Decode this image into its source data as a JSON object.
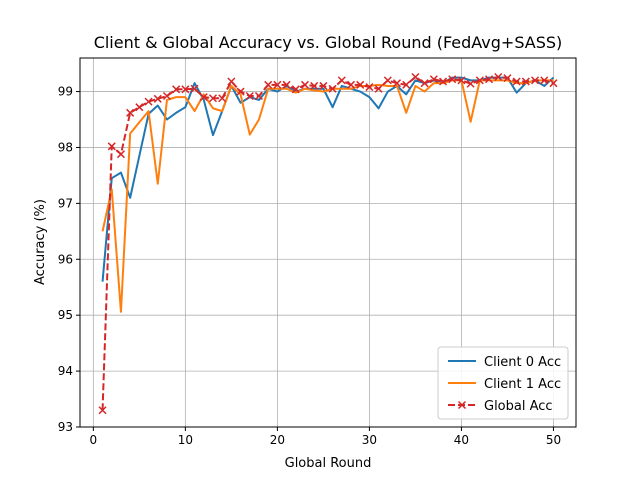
{
  "chart_data": {
    "type": "line",
    "title": "Client & Global Accuracy vs. Global Round (FedAvg+SASS)",
    "xlabel": "Global Round",
    "ylabel": "Accuracy (%)",
    "xlim": [
      -1.45,
      52.45
    ],
    "ylim": [
      93,
      99.6
    ],
    "xticks": [
      0,
      10,
      20,
      30,
      40,
      50
    ],
    "yticks": [
      93,
      94,
      95,
      96,
      97,
      98,
      99
    ],
    "grid": true,
    "legend_position": "lower-right",
    "x": [
      1,
      2,
      3,
      4,
      5,
      6,
      7,
      8,
      9,
      10,
      11,
      12,
      13,
      14,
      15,
      16,
      17,
      18,
      19,
      20,
      21,
      22,
      23,
      24,
      25,
      26,
      27,
      28,
      29,
      30,
      31,
      32,
      33,
      34,
      35,
      36,
      37,
      38,
      39,
      40,
      41,
      42,
      43,
      44,
      45,
      46,
      47,
      48,
      49,
      50
    ],
    "series": [
      {
        "name": "Client 0 Acc",
        "color": "#1f77b4",
        "style": "solid",
        "marker": "none",
        "values": [
          95.6,
          97.45,
          97.55,
          97.1,
          97.85,
          98.6,
          98.75,
          98.5,
          98.62,
          98.72,
          99.15,
          98.85,
          98.22,
          98.65,
          99.1,
          98.8,
          98.9,
          98.85,
          99.05,
          99.0,
          99.1,
          99.0,
          99.05,
          99.05,
          99.05,
          98.72,
          99.1,
          99.05,
          99.0,
          98.9,
          98.7,
          99.0,
          99.1,
          98.95,
          99.2,
          99.15,
          99.2,
          99.15,
          99.25,
          99.25,
          99.2,
          99.2,
          99.25,
          99.25,
          99.25,
          98.98,
          99.15,
          99.2,
          99.1,
          99.25
        ]
      },
      {
        "name": "Client 1 Acc",
        "color": "#ff7f0e",
        "style": "solid",
        "marker": "none",
        "values": [
          96.5,
          97.25,
          95.06,
          98.25,
          98.45,
          98.65,
          97.35,
          98.85,
          98.9,
          98.9,
          98.65,
          98.95,
          98.7,
          98.65,
          99.1,
          98.95,
          98.23,
          98.5,
          99.05,
          99.05,
          99.05,
          98.98,
          99.05,
          99.02,
          99.0,
          99.05,
          99.05,
          99.05,
          99.1,
          99.1,
          99.12,
          99.1,
          99.1,
          98.62,
          99.1,
          99.0,
          99.15,
          99.15,
          99.2,
          99.2,
          98.46,
          99.2,
          99.2,
          99.2,
          99.2,
          99.15,
          99.15,
          99.2,
          99.2,
          99.2
        ]
      },
      {
        "name": "Global Acc",
        "color": "#d62728",
        "style": "dashed",
        "marker": "x",
        "values": [
          93.3,
          98.02,
          97.88,
          98.62,
          98.72,
          98.82,
          98.87,
          98.92,
          99.04,
          99.04,
          99.05,
          98.9,
          98.88,
          98.88,
          99.18,
          99.0,
          98.92,
          98.92,
          99.12,
          99.12,
          99.12,
          99.04,
          99.12,
          99.1,
          99.1,
          99.05,
          99.2,
          99.12,
          99.12,
          99.08,
          99.05,
          99.2,
          99.15,
          99.12,
          99.26,
          99.15,
          99.22,
          99.18,
          99.22,
          99.2,
          99.14,
          99.2,
          99.22,
          99.26,
          99.24,
          99.18,
          99.18,
          99.2,
          99.2,
          99.15
        ]
      }
    ]
  }
}
